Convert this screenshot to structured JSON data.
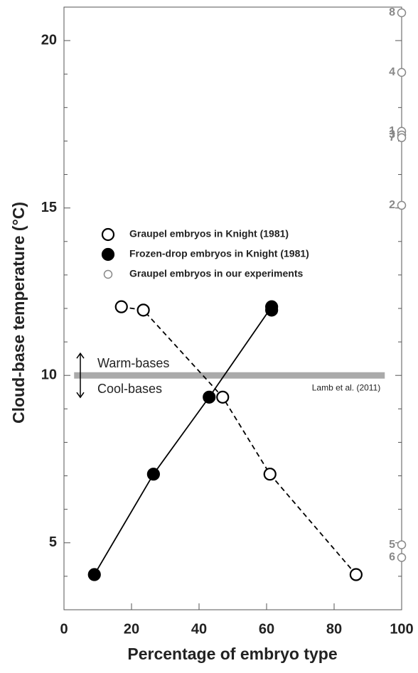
{
  "chart_data": {
    "type": "scatter",
    "xlabel": "Percentage of embryo type",
    "ylabel": "Cloud-base temperature (°C)",
    "xlim": [
      0,
      100
    ],
    "xticks": [
      0,
      20,
      40,
      60,
      80,
      100
    ],
    "ylim": [
      3,
      21
    ],
    "yticks": [
      5,
      10,
      15,
      20
    ],
    "yticks_minor": [
      4,
      6,
      7,
      8,
      9,
      11,
      12,
      13,
      14,
      16,
      17,
      18,
      19
    ],
    "series": [
      {
        "name": "Graupel embryos in Knight (1981)",
        "color": "#000000",
        "marker": "open",
        "line": "dashed",
        "x": [
          17,
          23.5,
          47,
          61,
          86.5
        ],
        "values": [
          12.05,
          11.95,
          9.35,
          7.05,
          4.05
        ]
      },
      {
        "name": "Frozen-drop embryos in Knight (1981)",
        "color": "#000000",
        "marker": "filled",
        "line": "solid",
        "x": [
          9,
          26.5,
          43,
          61.5,
          61.5
        ],
        "values": [
          4.05,
          7.05,
          9.35,
          12.05,
          11.95
        ]
      },
      {
        "name": "Graupel embryos in our experiments",
        "color": "#888888",
        "marker": "small-open",
        "line": "none",
        "x": [
          100,
          100,
          100,
          100,
          100,
          100,
          100,
          100
        ],
        "values": [
          20.83,
          19.05,
          17.29,
          17.18,
          17.1,
          15.08,
          4.94,
          4.56
        ],
        "point_labels": [
          "8",
          "4",
          "1",
          "3",
          "7",
          "2",
          "5",
          "6"
        ]
      }
    ],
    "reference_line": {
      "value": 10,
      "x": [
        3,
        95
      ],
      "label": "Lamb et al. (2011)",
      "color": "#aaaaaa"
    },
    "annotations": {
      "warm": "Warm-bases",
      "cool": "Cool-bases"
    }
  }
}
